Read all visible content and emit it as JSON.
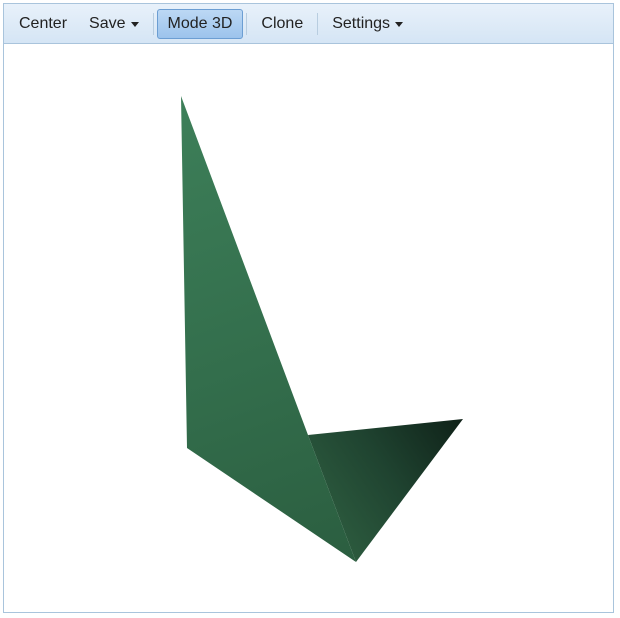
{
  "toolbar": {
    "center_label": "Center",
    "save_label": "Save",
    "mode3d_label": "Mode 3D",
    "clone_label": "Clone",
    "settings_label": "Settings"
  },
  "icons": {
    "dropdown": "caret-down-icon"
  },
  "colors": {
    "active_button": "#9cc3ec",
    "toolbar_background": "#d5e5f5",
    "shape_light": "#3c7e58",
    "shape_dark": "#12251a"
  }
}
